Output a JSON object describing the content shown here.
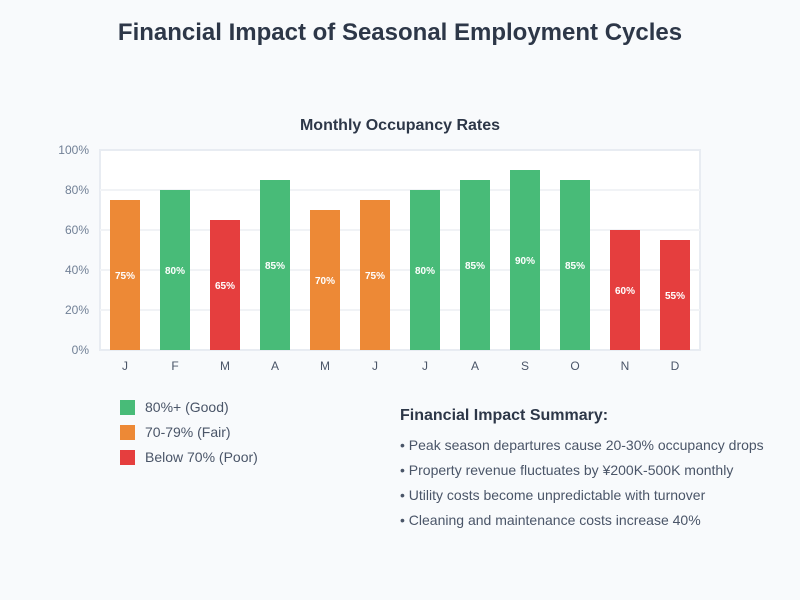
{
  "title": "Financial Impact of Seasonal Employment Cycles",
  "chart_data": {
    "type": "bar",
    "title": "Monthly Occupancy Rates",
    "categories": [
      "J",
      "F",
      "M",
      "A",
      "M",
      "J",
      "J",
      "A",
      "S",
      "O",
      "N",
      "D"
    ],
    "values": [
      75,
      80,
      65,
      85,
      70,
      75,
      80,
      85,
      90,
      85,
      60,
      55
    ],
    "data_labels": [
      "75%",
      "80%",
      "65%",
      "85%",
      "70%",
      "75%",
      "80%",
      "85%",
      "90%",
      "85%",
      "60%",
      "55%"
    ],
    "ylim": [
      0,
      100
    ],
    "yticks": [
      "0%",
      "20%",
      "40%",
      "60%",
      "80%",
      "100%"
    ],
    "grid": true,
    "xlabel": "",
    "ylabel": ""
  },
  "legend": [
    {
      "label": "80%+ (Good)",
      "color": "#48bb78"
    },
    {
      "label": "70-79% (Fair)",
      "color": "#ed8936"
    },
    {
      "label": "Below 70% (Poor)",
      "color": "#e53e3e"
    }
  ],
  "summary": {
    "heading": "Financial Impact Summary:",
    "items": [
      "• Peak season departures cause 20-30% occupancy drops",
      "• Property revenue fluctuates by ¥200K-500K monthly",
      "• Utility costs become unpredictable with turnover",
      "• Cleaning and maintenance costs increase 40%"
    ]
  }
}
